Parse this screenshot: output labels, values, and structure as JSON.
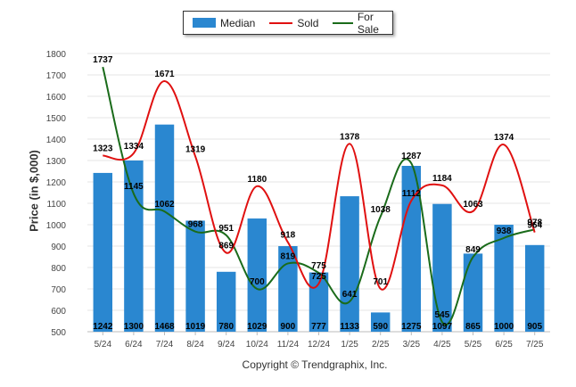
{
  "legend": {
    "median": "Median",
    "sold": "Sold",
    "for_sale": "For Sale"
  },
  "colors": {
    "median": "#2a87d0",
    "sold": "#e01010",
    "for_sale": "#1a6b1a"
  },
  "copyright": "Copyright © Trendgraphix, Inc.",
  "chart_data": {
    "type": "bar",
    "ylabel": "Price (in $,000)",
    "xlabel": "",
    "ylim": [
      500,
      1800
    ],
    "yticks": [
      500,
      600,
      700,
      800,
      900,
      1000,
      1100,
      1200,
      1300,
      1400,
      1500,
      1600,
      1700,
      1800
    ],
    "grid": true,
    "legend_position": "top-center",
    "categories": [
      "5/24",
      "6/24",
      "7/24",
      "8/24",
      "9/24",
      "10/24",
      "11/24",
      "12/24",
      "1/25",
      "2/25",
      "3/25",
      "4/25",
      "5/25",
      "6/25",
      "7/25"
    ],
    "series": [
      {
        "name": "Median",
        "type": "bar",
        "values": [
          1242,
          1300,
          1468,
          1019,
          780,
          1029,
          900,
          777,
          1133,
          590,
          1275,
          1097,
          865,
          1000,
          905
        ]
      },
      {
        "name": "Sold",
        "type": "line",
        "values": [
          1323,
          1334,
          1671,
          1319,
          869,
          1180,
          918,
          725,
          1378,
          701,
          1112,
          1184,
          1063,
          1374,
          964
        ]
      },
      {
        "name": "For Sale",
        "type": "line",
        "values": [
          1737,
          1145,
          1062,
          968,
          951,
          700,
          819,
          775,
          641,
          1038,
          1287,
          545,
          849,
          938,
          978
        ]
      }
    ]
  }
}
